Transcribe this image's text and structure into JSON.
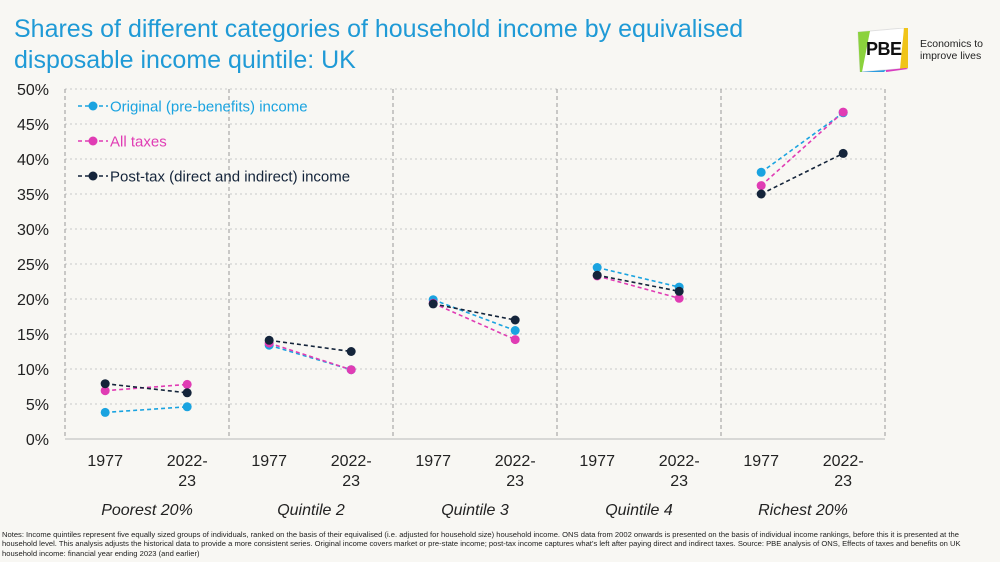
{
  "title": "Shares of different categories of household income by equivalised disposable income quintile: UK",
  "logo": {
    "text": "PBE",
    "tagline": "Economics to improve lives"
  },
  "notes": "Notes: Income quintiles represent five equally sized groups of individuals, ranked on the basis of their equivalised (i.e. adjusted for household size) household income. ONS data from 2002 onwards is presented on the basis of individual income rankings, before this it is presented at the household level. This analysis adjusts the historical data to provide a more consistent series. Original income covers market or pre-state income; post-tax income captures what’s left after paying direct and indirect taxes. Source: PBE analysis of ONS, Effects of taxes and benefits on UK household income: financial year ending 2023 (and earlier)",
  "chart_data": {
    "type": "line",
    "title": "Shares of different categories of household income by equivalised disposable income quintile: UK",
    "groups": [
      "Poorest 20%",
      "Quintile 2",
      "Quintile 3",
      "Quintile 4",
      "Richest 20%"
    ],
    "periods": [
      "1977",
      "2022-23"
    ],
    "yticks": [
      "0%",
      "5%",
      "10%",
      "15%",
      "20%",
      "25%",
      "30%",
      "35%",
      "40%",
      "45%",
      "50%"
    ],
    "ylim": [
      0,
      50
    ],
    "legend_position": "top-left",
    "series": [
      {
        "name": "Original (pre-benefits) income",
        "color": "#1aa3e0",
        "values": [
          [
            3.8,
            4.6
          ],
          [
            13.4,
            9.9
          ],
          [
            19.9,
            15.5
          ],
          [
            24.5,
            21.7
          ],
          [
            38.1,
            46.6
          ]
        ]
      },
      {
        "name": "All taxes",
        "color": "#e03cb4",
        "values": [
          [
            6.9,
            7.8
          ],
          [
            13.7,
            9.9
          ],
          [
            19.4,
            14.2
          ],
          [
            23.3,
            20.1
          ],
          [
            36.2,
            46.7
          ]
        ]
      },
      {
        "name": "Post-tax (direct and indirect) income",
        "color": "#14243a",
        "values": [
          [
            7.9,
            6.6
          ],
          [
            14.1,
            12.5
          ],
          [
            19.3,
            17.0
          ],
          [
            23.4,
            21.1
          ],
          [
            35.0,
            40.8
          ]
        ]
      }
    ]
  }
}
